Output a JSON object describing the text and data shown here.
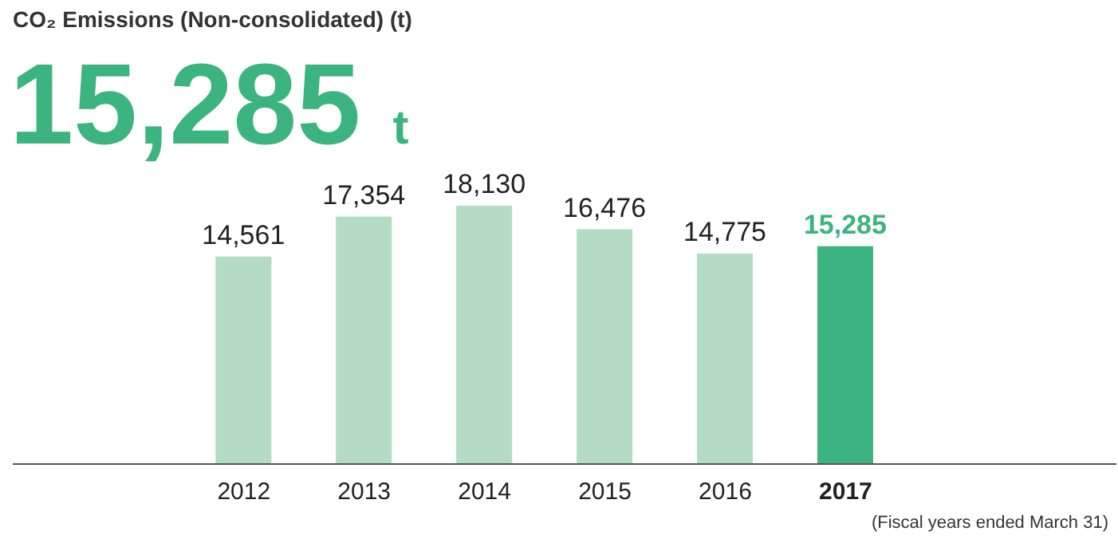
{
  "chart_data": {
    "type": "bar",
    "title": "CO₂ Emissions (Non-consolidated) (t)",
    "annotations": [
      "15,285 t",
      "(Fiscal years ended March 31)"
    ],
    "categories": [
      "2012",
      "2013",
      "2014",
      "2015",
      "2016",
      "2017"
    ],
    "values": [
      14561,
      17354,
      18130,
      16476,
      14775,
      15285
    ],
    "colors": [
      "#b3dcc3",
      "#b3dcc3",
      "#b3dcc3",
      "#b3dcc3",
      "#b3dcc3",
      "#3cb47f"
    ],
    "value_labels": [
      "14,561",
      "17,354",
      "18,130",
      "16,476",
      "14,775",
      "15,285"
    ],
    "tick_labels": "x"
  }
}
